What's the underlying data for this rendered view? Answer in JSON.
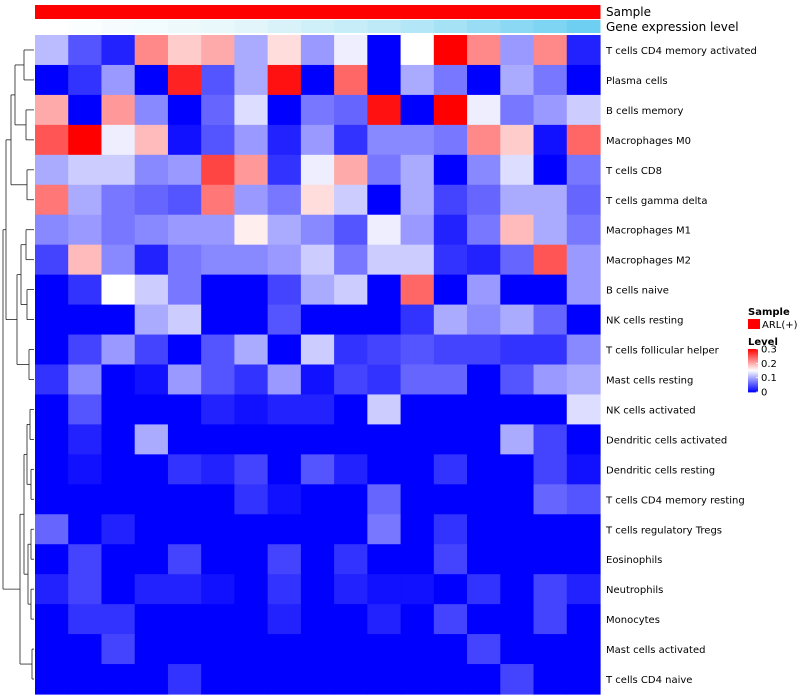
{
  "chart_data": {
    "type": "heatmap",
    "title": "",
    "annotations": [
      {
        "name": "Sample",
        "kind": "categorical",
        "color": "#ff0000"
      },
      {
        "name": "Gene expression level",
        "kind": "continuous",
        "gradient": [
          "#ffffff",
          "#e8f7fb",
          "#b8e8f6",
          "#6fcff2"
        ]
      }
    ],
    "legend": {
      "sample": {
        "title": "Sample",
        "entries": [
          {
            "label": "ARL(+)",
            "color": "#ff0000"
          }
        ]
      },
      "level": {
        "title": "Level",
        "ticks": [
          0.3,
          0.2,
          0.1,
          0
        ],
        "tick_labels": [
          "0.3",
          "0.2",
          "0.1",
          "0"
        ],
        "range": [
          0,
          0.3
        ]
      }
    },
    "color_scale": {
      "low": "#0000ff",
      "mid": "#ffffff",
      "high": "#ff0000",
      "midpoint": 0.15
    },
    "rows": [
      "T cells CD4 memory activated",
      "Plasma cells",
      "B cells memory",
      "Macrophages M0",
      "T cells CD8",
      "T cells gamma delta",
      "Macrophages M1",
      "Macrophages M2",
      "B cells naive",
      "NK cells resting",
      "T cells follicular helper",
      "Mast cells resting",
      "NK cells activated",
      "Dendritic cells activated",
      "Dendritic cells resting",
      "T cells CD4 memory resting",
      "T cells regulatory  Tregs",
      "Eosinophils",
      "Neutrophils",
      "Monocytes",
      "Mast cells activated",
      "T cells CD4 naive"
    ],
    "n_samples": 17,
    "values": [
      [
        0.11,
        0.05,
        0.02,
        0.22,
        0.18,
        0.2,
        0.1,
        0.17,
        0.09,
        0.14,
        0.0,
        0.15,
        0.3,
        0.22,
        0.09,
        0.22,
        0.02
      ],
      [
        0.0,
        0.03,
        0.09,
        0.0,
        0.28,
        0.05,
        0.1,
        0.29,
        0.0,
        0.24,
        0.0,
        0.1,
        0.07,
        0.0,
        0.1,
        0.07,
        0.0
      ],
      [
        0.2,
        0.0,
        0.21,
        0.08,
        0.0,
        0.06,
        0.13,
        0.0,
        0.07,
        0.06,
        0.29,
        0.0,
        0.3,
        0.14,
        0.07,
        0.09,
        0.12
      ],
      [
        0.25,
        0.3,
        0.14,
        0.19,
        0.01,
        0.05,
        0.09,
        0.02,
        0.09,
        0.03,
        0.08,
        0.08,
        0.07,
        0.22,
        0.18,
        0.01,
        0.24
      ],
      [
        0.1,
        0.12,
        0.12,
        0.08,
        0.09,
        0.26,
        0.21,
        0.03,
        0.14,
        0.2,
        0.07,
        0.1,
        0.0,
        0.08,
        0.13,
        0.0,
        0.07
      ],
      [
        0.23,
        0.1,
        0.07,
        0.06,
        0.05,
        0.23,
        0.09,
        0.07,
        0.17,
        0.12,
        0.0,
        0.1,
        0.04,
        0.06,
        0.1,
        0.1,
        0.06
      ],
      [
        0.08,
        0.09,
        0.07,
        0.08,
        0.09,
        0.09,
        0.16,
        0.1,
        0.08,
        0.05,
        0.14,
        0.09,
        0.02,
        0.07,
        0.19,
        0.1,
        0.07
      ],
      [
        0.04,
        0.19,
        0.08,
        0.02,
        0.07,
        0.08,
        0.08,
        0.09,
        0.12,
        0.07,
        0.12,
        0.12,
        0.03,
        0.02,
        0.06,
        0.25,
        0.09
      ],
      [
        0.0,
        0.03,
        0.15,
        0.12,
        0.07,
        0.0,
        0.0,
        0.04,
        0.1,
        0.12,
        0.0,
        0.24,
        0.0,
        0.09,
        0.0,
        0.0,
        0.09
      ],
      [
        0.0,
        0.0,
        0.0,
        0.1,
        0.12,
        0.0,
        0.0,
        0.05,
        0.0,
        0.0,
        0.0,
        0.03,
        0.1,
        0.08,
        0.1,
        0.06,
        0.0
      ],
      [
        0.0,
        0.04,
        0.09,
        0.04,
        0.0,
        0.05,
        0.1,
        0.0,
        0.12,
        0.03,
        0.04,
        0.05,
        0.04,
        0.04,
        0.03,
        0.03,
        0.08
      ],
      [
        0.03,
        0.08,
        0.0,
        0.01,
        0.09,
        0.05,
        0.03,
        0.09,
        0.01,
        0.04,
        0.03,
        0.06,
        0.06,
        0.0,
        0.05,
        0.09,
        0.1
      ],
      [
        0.0,
        0.05,
        0.0,
        0.0,
        0.0,
        0.02,
        0.01,
        0.02,
        0.02,
        0.0,
        0.12,
        0.0,
        0.0,
        0.0,
        0.0,
        0.0,
        0.13
      ],
      [
        0.0,
        0.02,
        0.0,
        0.1,
        0.0,
        0.0,
        0.0,
        0.0,
        0.0,
        0.0,
        0.0,
        0.0,
        0.0,
        0.0,
        0.1,
        0.04,
        0.0
      ],
      [
        0.0,
        0.01,
        0.0,
        0.0,
        0.03,
        0.02,
        0.04,
        0.0,
        0.05,
        0.02,
        0.0,
        0.0,
        0.03,
        0.0,
        0.0,
        0.04,
        0.01
      ],
      [
        0.0,
        0.0,
        0.0,
        0.0,
        0.0,
        0.0,
        0.03,
        0.01,
        0.0,
        0.0,
        0.06,
        0.0,
        0.0,
        0.0,
        0.0,
        0.06,
        0.05
      ],
      [
        0.06,
        0.0,
        0.02,
        0.0,
        0.0,
        0.0,
        0.0,
        0.0,
        0.0,
        0.0,
        0.07,
        0.0,
        0.03,
        0.0,
        0.0,
        0.0,
        0.0
      ],
      [
        0.0,
        0.04,
        0.0,
        0.0,
        0.04,
        0.0,
        0.0,
        0.04,
        0.0,
        0.03,
        0.0,
        0.0,
        0.04,
        0.0,
        0.0,
        0.0,
        0.0
      ],
      [
        0.02,
        0.04,
        0.0,
        0.02,
        0.02,
        0.01,
        0.0,
        0.03,
        0.0,
        0.02,
        0.01,
        0.01,
        0.0,
        0.03,
        0.0,
        0.04,
        0.02
      ],
      [
        0.0,
        0.03,
        0.03,
        0.0,
        0.0,
        0.0,
        0.0,
        0.02,
        0.0,
        0.0,
        0.02,
        0.0,
        0.04,
        0.0,
        0.0,
        0.04,
        0.0
      ],
      [
        0.0,
        0.0,
        0.04,
        0.0,
        0.0,
        0.0,
        0.0,
        0.0,
        0.0,
        0.0,
        0.0,
        0.0,
        0.0,
        0.04,
        0.0,
        0.0,
        0.0
      ],
      [
        0.0,
        0.0,
        0.0,
        0.0,
        0.03,
        0.0,
        0.0,
        0.0,
        0.0,
        0.0,
        0.0,
        0.0,
        0.0,
        0.0,
        0.04,
        0.0,
        0.0
      ]
    ]
  }
}
